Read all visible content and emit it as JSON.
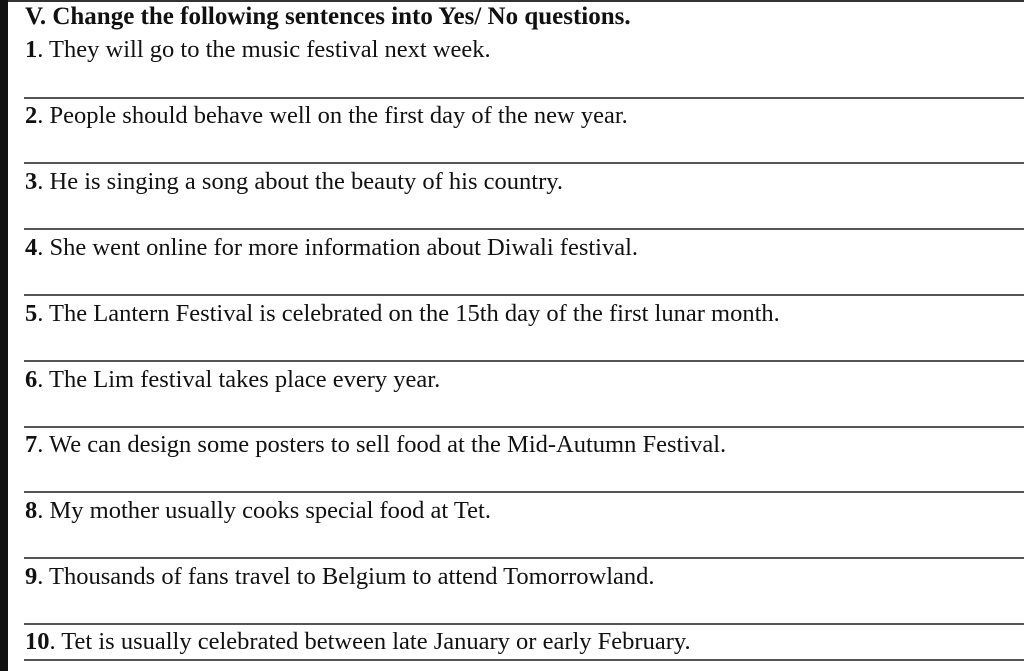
{
  "title": "V. Change the following sentences into Yes/ No questions.",
  "items": [
    {
      "num": "1",
      "text": ". They will go to the music festival next week."
    },
    {
      "num": "2",
      "text": ". People should behave well on the first day of the new year."
    },
    {
      "num": "3",
      "text": ". He is singing a song about the beauty of his country."
    },
    {
      "num": "4",
      "text": ". She went online for more information about Diwali festival."
    },
    {
      "num": "5",
      "text": ". The Lantern Festival is celebrated on the 15th day of the first lunar month."
    },
    {
      "num": "6",
      "text": ". The Lim festival takes place every year."
    },
    {
      "num": "7",
      "text": ". We can design some posters to sell food at the Mid-Autumn Festival."
    },
    {
      "num": "8",
      "text": ". My mother usually cooks special food at Tet."
    },
    {
      "num": "9",
      "text": ". Thousands of fans travel to Belgium to attend Tomorrowland."
    },
    {
      "num": "10",
      "text": ". Tet is usually celebrated between late January or early February."
    }
  ]
}
